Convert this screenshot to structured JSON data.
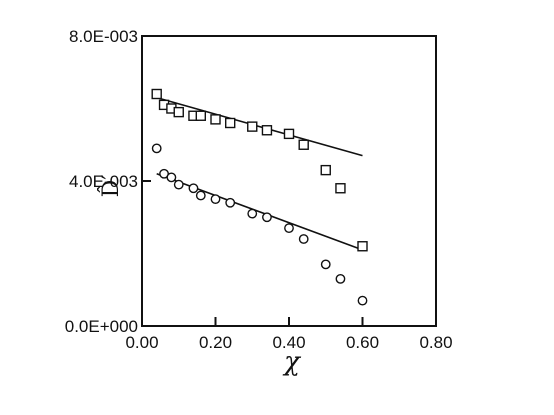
{
  "chart_data": {
    "type": "scatter",
    "title": "",
    "xlabel": "χ",
    "ylabel": "D̂′",
    "xlim": [
      0.0,
      0.8
    ],
    "ylim": [
      0.0,
      0.008
    ],
    "x_tick_values": [
      0.0,
      0.2,
      0.4,
      0.6,
      0.8
    ],
    "x_tick_labels": [
      "0.00",
      "0.20",
      "0.40",
      "0.60",
      "0.80"
    ],
    "y_tick_values": [
      0.0,
      0.004,
      0.008
    ],
    "y_tick_labels": [
      "0.0E+000",
      "4.0E-003",
      "8.0E-003"
    ],
    "grid": false,
    "legend": "none",
    "series": [
      {
        "marker": "square",
        "x": [
          0.04,
          0.06,
          0.08,
          0.1,
          0.14,
          0.16,
          0.2,
          0.24,
          0.3,
          0.34,
          0.4,
          0.44,
          0.5,
          0.54,
          0.6
        ],
        "y": [
          0.0064,
          0.0061,
          0.006,
          0.0059,
          0.0058,
          0.0058,
          0.0057,
          0.0056,
          0.0055,
          0.0054,
          0.0053,
          0.005,
          0.0043,
          0.0038,
          0.0022
        ],
        "fit_line": {
          "x": [
            0.04,
            0.6
          ],
          "y": [
            0.0063,
            0.0047
          ]
        }
      },
      {
        "marker": "circle",
        "x": [
          0.04,
          0.06,
          0.08,
          0.1,
          0.14,
          0.16,
          0.2,
          0.24,
          0.3,
          0.34,
          0.4,
          0.44,
          0.5,
          0.54,
          0.6
        ],
        "y": [
          0.0049,
          0.0042,
          0.0041,
          0.0039,
          0.0038,
          0.0036,
          0.0035,
          0.0034,
          0.0031,
          0.003,
          0.0027,
          0.0024,
          0.0017,
          0.0013,
          0.0007
        ],
        "fit_line": {
          "x": [
            0.04,
            0.6
          ],
          "y": [
            0.0042,
            0.0021
          ]
        }
      }
    ]
  }
}
